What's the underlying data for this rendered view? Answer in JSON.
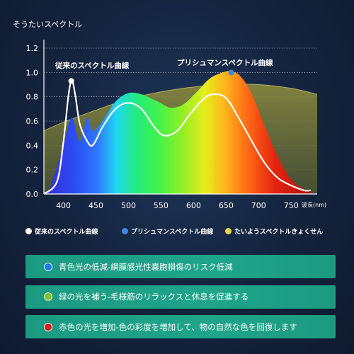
{
  "colors": {
    "conventional": "#ffffff",
    "prismus": "#3a8ae6",
    "sunlight": "#e8d84a",
    "bullet_blue": "#1f78e8",
    "bullet_green": "#7dc32a",
    "bullet_red": "#d42020"
  },
  "chart_data": {
    "type": "area",
    "ylabel": "そうたいスペクトル",
    "xlabel": "波長(nm)",
    "xlim": [
      370,
      790
    ],
    "ylim": [
      0,
      1.2
    ],
    "x_ticks": [
      400,
      450,
      500,
      550,
      600,
      650,
      700,
      750
    ],
    "y_ticks": [
      "0.0",
      "0.2",
      "0.4",
      "0.6",
      "0.8",
      "1.0",
      "1.2"
    ],
    "grid": true,
    "annotations": [
      {
        "text": "従来のスペクトル曲線",
        "x": 412,
        "y": 1.09
      },
      {
        "text": "プリシュマンスペクトル曲線",
        "x": 658,
        "y": 1.11
      }
    ],
    "series": [
      {
        "name": "たいようスペクトルきょくせん",
        "x": [
          370,
          400,
          450,
          500,
          550,
          600,
          650,
          700,
          750,
          790
        ],
        "values": [
          0.52,
          0.59,
          0.69,
          0.78,
          0.84,
          0.88,
          0.9,
          0.9,
          0.87,
          0.82
        ]
      },
      {
        "name": "プリシュマンスペクトル曲線",
        "x": [
          370,
          380,
          400,
          413,
          425,
          437,
          445,
          460,
          480,
          500,
          520,
          545,
          565,
          585,
          605,
          625,
          645,
          658,
          672,
          690,
          710,
          730,
          750,
          770,
          780
        ],
        "values": [
          0.0,
          0.06,
          0.4,
          0.63,
          0.43,
          0.63,
          0.52,
          0.6,
          0.76,
          0.83,
          0.82,
          0.76,
          0.71,
          0.74,
          0.84,
          0.95,
          1.0,
          1.01,
          0.97,
          0.82,
          0.55,
          0.3,
          0.12,
          0.04,
          0.03
        ]
      },
      {
        "name": "従来のスペクトル曲線",
        "x": [
          370,
          390,
          400,
          408,
          413,
          418,
          425,
          435,
          445,
          460,
          480,
          500,
          520,
          540,
          555,
          575,
          595,
          615,
          630,
          650,
          670,
          690,
          710,
          730,
          750,
          770,
          780
        ],
        "values": [
          0.0,
          0.1,
          0.43,
          0.82,
          0.93,
          0.82,
          0.58,
          0.45,
          0.4,
          0.55,
          0.7,
          0.75,
          0.7,
          0.55,
          0.48,
          0.52,
          0.66,
          0.78,
          0.82,
          0.79,
          0.62,
          0.43,
          0.25,
          0.13,
          0.07,
          0.03,
          0.03
        ]
      }
    ]
  },
  "legend": {
    "items": [
      {
        "label": "従来のスペクトル曲線"
      },
      {
        "label": "プリシュマンスペクトル曲線"
      },
      {
        "label": "たいようスペクトルきょくせん"
      }
    ]
  },
  "features": {
    "items": [
      {
        "text": "青色光の低減-網膜感光性嚢胞損傷のリスク低減",
        "icon": "blue-dot-icon"
      },
      {
        "text": "緑の光を補う-毛様筋のリラックスと休息を促進する",
        "icon": "green-dot-icon"
      },
      {
        "text": "赤色の光を増加-色の彩度を増加して、物の自然な色を回復します",
        "icon": "red-dot-icon"
      }
    ]
  }
}
